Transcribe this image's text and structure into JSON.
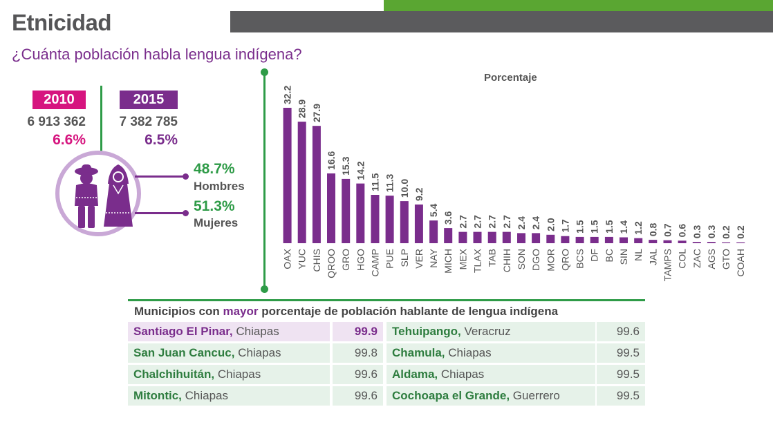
{
  "header": {
    "title": "Etnicidad",
    "subtitle": "¿Cuánta población habla lengua indígena?"
  },
  "summary": {
    "y2010": {
      "year": "2010",
      "population": "6 913 362",
      "percent": "6.6%"
    },
    "y2015": {
      "year": "2015",
      "population": "7 382 785",
      "percent": "6.5%"
    }
  },
  "gender": {
    "men": {
      "percent": "48.7%",
      "label": "Hombres"
    },
    "women": {
      "percent": "51.3%",
      "label": "Mujeres"
    }
  },
  "colors": {
    "accent_purple": "#7a2d8c",
    "accent_magenta": "#d6157f",
    "accent_green": "#2e9b47"
  },
  "chart_data": {
    "type": "bar",
    "ylabel": "Porcentaje",
    "categories": [
      "OAX",
      "YUC",
      "CHIS",
      "QROO",
      "GRO",
      "HGO",
      "CAMP",
      "PUE",
      "SLP",
      "VER",
      "NAY",
      "MICH",
      "MEX",
      "TLAX",
      "TAB",
      "CHIH",
      "SON",
      "DGO",
      "MOR",
      "QRO",
      "BCS",
      "DF",
      "BC",
      "SIN",
      "NL",
      "JAL",
      "TAMPS",
      "COL",
      "ZAC",
      "AGS",
      "GTO",
      "COAH"
    ],
    "values": [
      32.2,
      28.9,
      27.9,
      16.6,
      15.3,
      14.2,
      11.5,
      11.3,
      10.0,
      9.2,
      5.4,
      3.6,
      2.7,
      2.7,
      2.7,
      2.7,
      2.4,
      2.4,
      2.0,
      1.7,
      1.5,
      1.5,
      1.5,
      1.4,
      1.2,
      0.8,
      0.7,
      0.6,
      0.3,
      0.3,
      0.2,
      0.2
    ],
    "value_labels": [
      "32.2",
      "28.9",
      "27.9",
      "16.6",
      "15.3",
      "14.2",
      "11.5",
      "11.3",
      "10.0",
      "9.2",
      "5.4",
      "3.6",
      "2.7",
      "2.7",
      "2.7",
      "2.7",
      "2.4",
      "2.4",
      "2.0",
      "1.7",
      "1.5",
      "1.5",
      "1.5",
      "1.4",
      "1.2",
      "0.8",
      "0.7",
      "0.6",
      "0.3",
      "0.3",
      "0.2",
      "0.2"
    ],
    "ylim": [
      0,
      32.2
    ],
    "bar_color": "#7a2d8c"
  },
  "table": {
    "title_pre": "Municipios con ",
    "title_mayor": "mayor",
    "title_post": " porcentaje de población hablante de lengua indígena",
    "left": [
      {
        "name": "Santiago El Pinar,",
        "state": " Chiapas",
        "value": "99.9",
        "highlight": true
      },
      {
        "name": "San Juan Cancuc,",
        "state": " Chiapas",
        "value": "99.8"
      },
      {
        "name": "Chalchihuitán,",
        "state": " Chiapas",
        "value": "99.6"
      },
      {
        "name": "Mitontic,",
        "state": " Chiapas",
        "value": "99.6"
      }
    ],
    "right": [
      {
        "name": "Tehuipango,",
        "state": " Veracruz",
        "value": "99.6"
      },
      {
        "name": "Chamula,",
        "state": " Chiapas",
        "value": "99.5"
      },
      {
        "name": "Aldama,",
        "state": " Chiapas",
        "value": "99.5"
      },
      {
        "name": "Cochoapa el Grande,",
        "state": " Guerrero",
        "value": "99.5"
      }
    ]
  }
}
